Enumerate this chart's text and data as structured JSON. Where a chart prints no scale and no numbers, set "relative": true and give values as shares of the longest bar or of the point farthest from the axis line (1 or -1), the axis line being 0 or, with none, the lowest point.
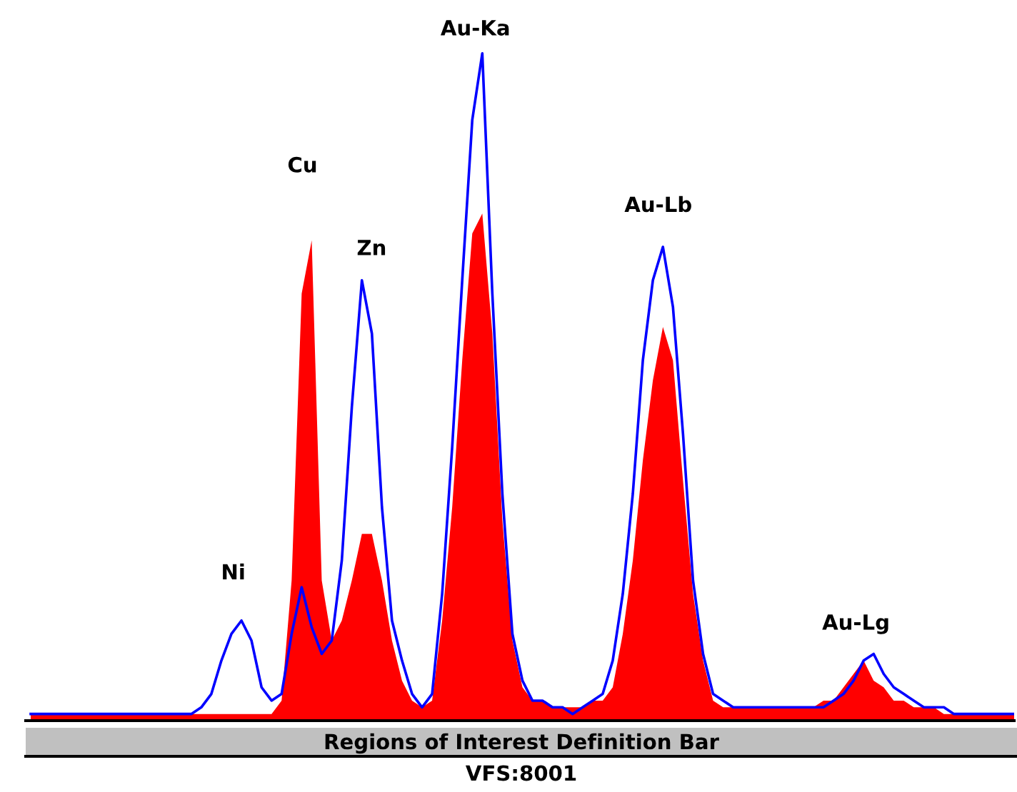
{
  "chart_data": {
    "type": "area",
    "relative": true,
    "categories": [
      null,
      null,
      null,
      null,
      null,
      null,
      null,
      null,
      null,
      null,
      null,
      null,
      null,
      null,
      null,
      null,
      null,
      null,
      null,
      null,
      null,
      null,
      null,
      null,
      null,
      null,
      null,
      null,
      null,
      null,
      null,
      null,
      null,
      null,
      null,
      null,
      null,
      null,
      null,
      null,
      null,
      null,
      null,
      null,
      null,
      null,
      null,
      null,
      null,
      null,
      null,
      null,
      null,
      null,
      null,
      null,
      null,
      null,
      null,
      null,
      null,
      null,
      null,
      null,
      null,
      null,
      null,
      null,
      null,
      null,
      null,
      null,
      null,
      null,
      null,
      null,
      null,
      null,
      null,
      null,
      null,
      null,
      null,
      null,
      null,
      null,
      null,
      null,
      null,
      null,
      null,
      null,
      null,
      null,
      null,
      null,
      null,
      null,
      null
    ],
    "series": [
      {
        "type": "area",
        "color": "#ff0000",
        "values": [
          0.01,
          0.01,
          0.01,
          0.01,
          0.01,
          0.01,
          0.01,
          0.01,
          0.01,
          0.01,
          0.01,
          0.01,
          0.01,
          0.01,
          0.01,
          0.01,
          0.01,
          0.01,
          0.01,
          0.01,
          0.01,
          0.01,
          0.01,
          0.01,
          0.01,
          0.03,
          0.21,
          0.64,
          0.72,
          0.21,
          0.12,
          0.15,
          0.21,
          0.28,
          0.28,
          0.21,
          0.12,
          0.06,
          0.03,
          0.02,
          0.03,
          0.15,
          0.32,
          0.54,
          0.73,
          0.76,
          0.58,
          0.3,
          0.12,
          0.05,
          0.03,
          0.03,
          0.02,
          0.02,
          0.02,
          0.02,
          0.03,
          0.03,
          0.05,
          0.13,
          0.24,
          0.39,
          0.51,
          0.59,
          0.54,
          0.36,
          0.19,
          0.09,
          0.03,
          0.02,
          0.02,
          0.02,
          0.02,
          0.02,
          0.02,
          0.02,
          0.02,
          0.02,
          0.02,
          0.03,
          0.03,
          0.05,
          0.07,
          0.09,
          0.06,
          0.05,
          0.03,
          0.03,
          0.02,
          0.02,
          0.02,
          0.01,
          0.01,
          0.01,
          0.01,
          0.01,
          0.01,
          0.01,
          0.01
        ]
      },
      {
        "type": "line",
        "color": "#0000ff",
        "values": [
          0.01,
          0.01,
          0.01,
          0.01,
          0.01,
          0.01,
          0.01,
          0.01,
          0.01,
          0.01,
          0.01,
          0.01,
          0.01,
          0.01,
          0.01,
          0.01,
          0.01,
          0.02,
          0.04,
          0.09,
          0.13,
          0.15,
          0.12,
          0.05,
          0.03,
          0.04,
          0.13,
          0.2,
          0.14,
          0.1,
          0.12,
          0.24,
          0.47,
          0.66,
          0.58,
          0.32,
          0.15,
          0.09,
          0.04,
          0.02,
          0.04,
          0.19,
          0.41,
          0.66,
          0.9,
          1.0,
          0.64,
          0.34,
          0.13,
          0.06,
          0.03,
          0.03,
          0.02,
          0.02,
          0.01,
          0.02,
          0.03,
          0.04,
          0.09,
          0.19,
          0.34,
          0.54,
          0.66,
          0.71,
          0.62,
          0.43,
          0.21,
          0.1,
          0.04,
          0.03,
          0.02,
          0.02,
          0.02,
          0.02,
          0.02,
          0.02,
          0.02,
          0.02,
          0.02,
          0.02,
          0.03,
          0.04,
          0.06,
          0.09,
          0.1,
          0.07,
          0.05,
          0.04,
          0.03,
          0.02,
          0.02,
          0.02,
          0.01,
          0.01,
          0.01,
          0.01,
          0.01,
          0.01,
          0.01
        ]
      }
    ],
    "annotations": [
      "Ni",
      "Cu",
      "Zn",
      "Au-Ka",
      "Au-Lb",
      "Au-Lg",
      "Regions of Interest Definition Bar",
      "VFS:8001"
    ]
  }
}
